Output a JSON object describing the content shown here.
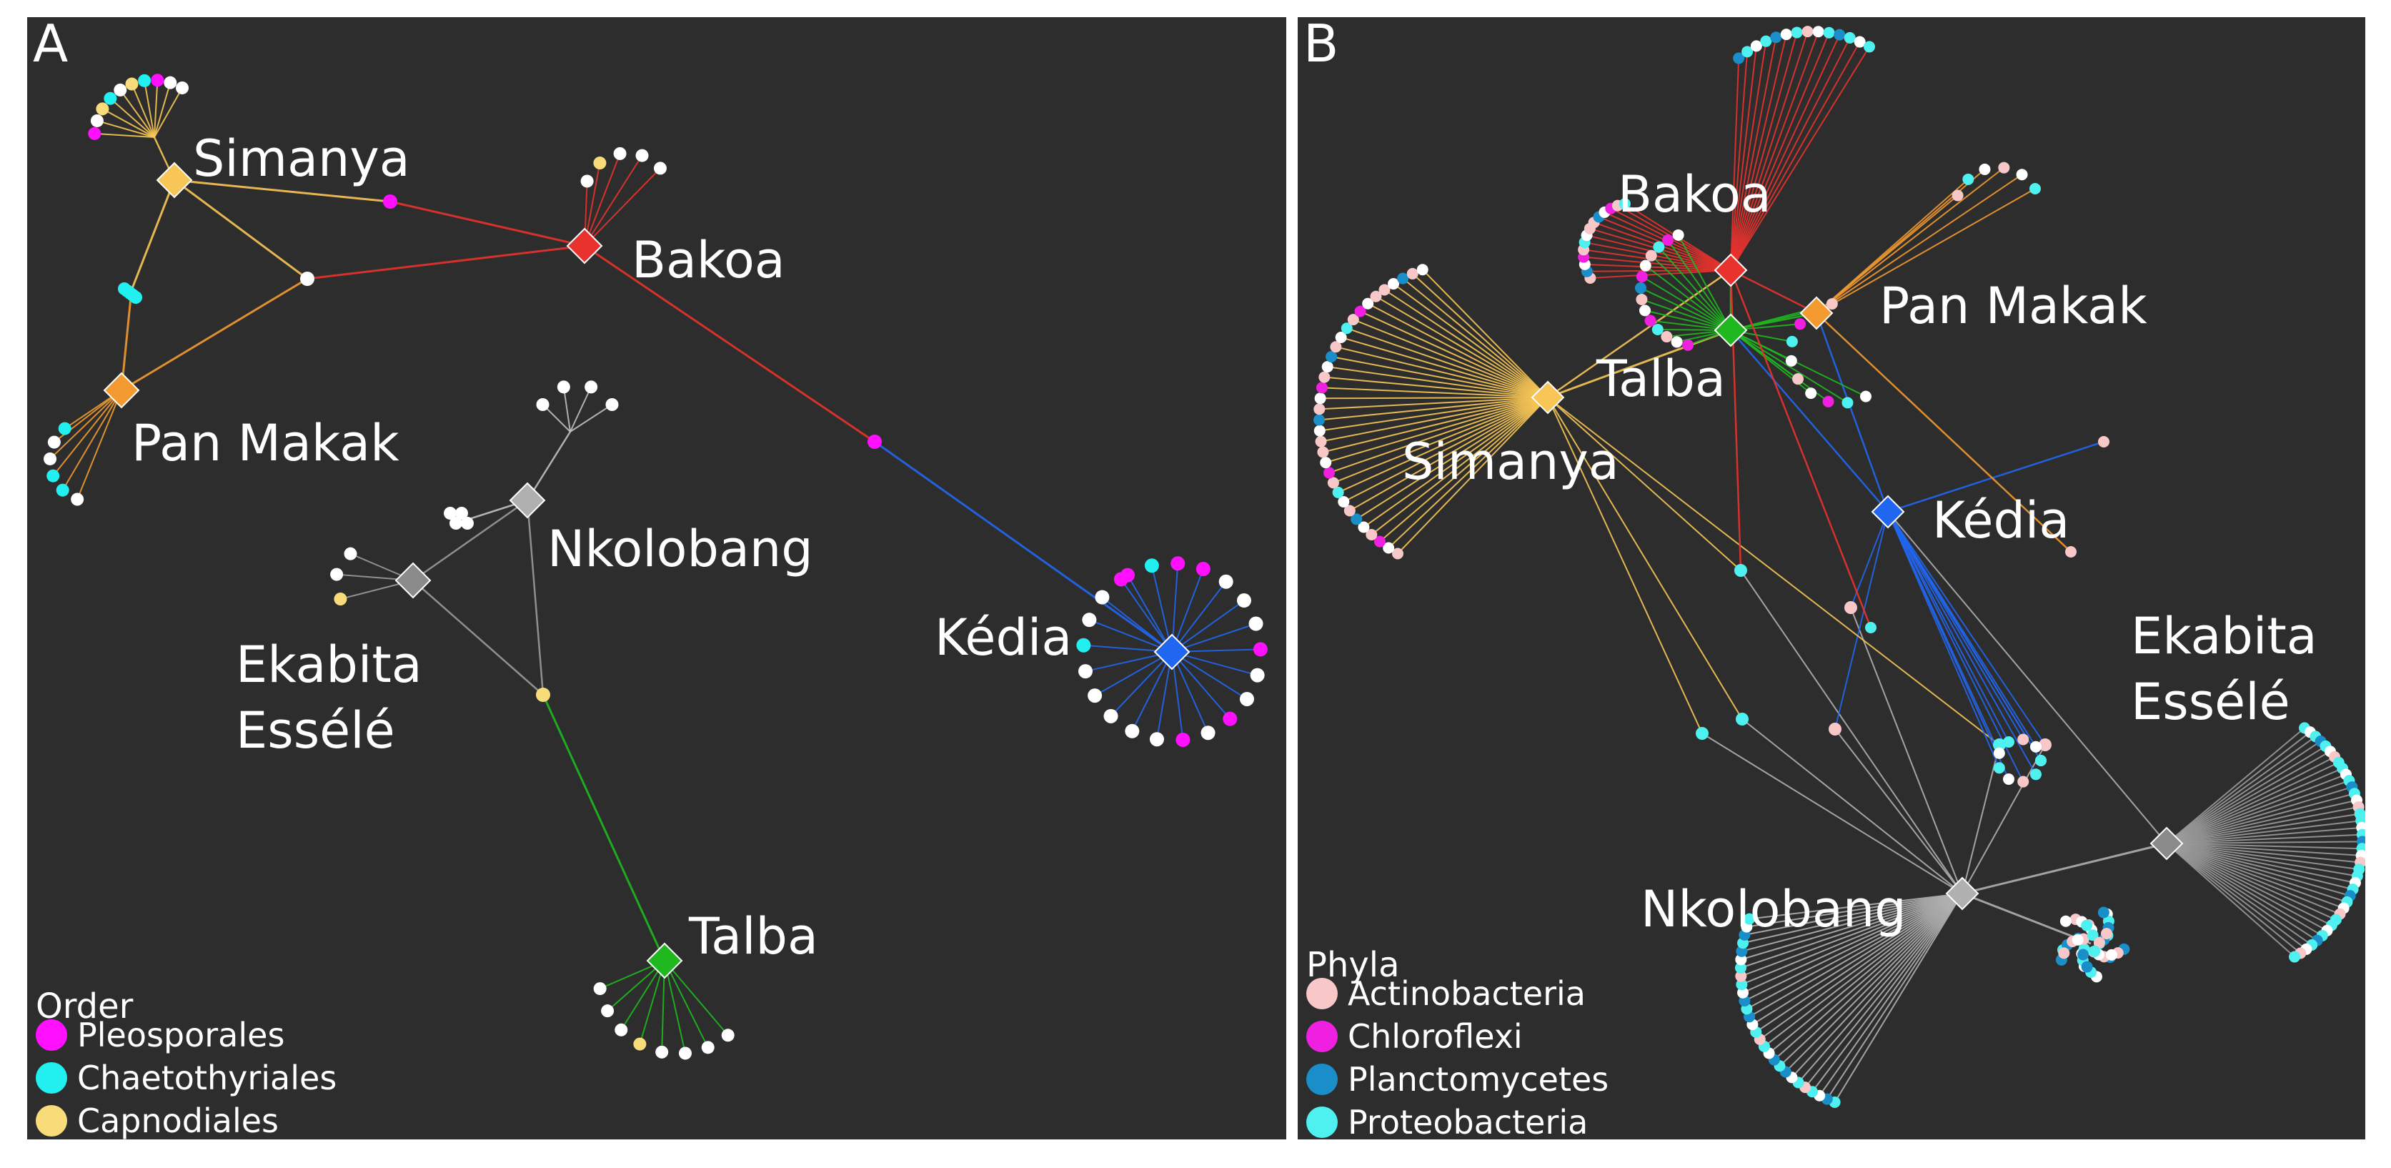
{
  "panel_a": {
    "letter": "A",
    "hubs": [
      {
        "id": "simanya",
        "label": "Simanya",
        "color": "#f7c657"
      },
      {
        "id": "bakoa",
        "label": "Bakoa",
        "color": "#e8322e"
      },
      {
        "id": "panmakak",
        "label": "Pan Makak",
        "color": "#f29a30"
      },
      {
        "id": "nkolobang",
        "label": "Nkolobang",
        "color": "#b0b0b0"
      },
      {
        "id": "ekabita",
        "label": "Ekabita Essélé",
        "label_lines": [
          "Ekabita",
          "Essélé"
        ],
        "color": "#8a8a8a"
      },
      {
        "id": "kedia",
        "label": "Kédia",
        "color": "#2166f0"
      },
      {
        "id": "talba",
        "label": "Talba",
        "color": "#1fb81f"
      }
    ],
    "legend": {
      "title": "Order",
      "items": [
        {
          "label": "Pleosporales",
          "color": "#ff10ff"
        },
        {
          "label": "Chaetothyriales",
          "color": "#22f0f0"
        },
        {
          "label": "Capnodiales",
          "color": "#f9dc7a"
        }
      ]
    }
  },
  "panel_b": {
    "letter": "B",
    "hubs": [
      {
        "id": "bakoa",
        "label": "Bakoa",
        "color": "#e8322e"
      },
      {
        "id": "panmakak",
        "label": "Pan Makak",
        "color": "#f29a30"
      },
      {
        "id": "talba",
        "label": "Talba",
        "color": "#1fb81f"
      },
      {
        "id": "simanya",
        "label": "Simanya",
        "color": "#f7c657"
      },
      {
        "id": "kedia",
        "label": "Kédia",
        "color": "#2166f0"
      },
      {
        "id": "ekabita",
        "label": "Ekabita Essélé",
        "label_lines": [
          "Ekabita",
          "Essélé"
        ],
        "color": "#8a8a8a"
      },
      {
        "id": "nkolobang",
        "label": "Nkolobang",
        "color": "#b0b0b0"
      }
    ],
    "legend": {
      "title": "Phyla",
      "items": [
        {
          "label": "Actinobacteria",
          "color": "#f8c7c7"
        },
        {
          "label": "Chloroflexi",
          "color": "#f020e0"
        },
        {
          "label": "Planctomycetes",
          "color": "#1a8ec8"
        },
        {
          "label": "Proteobacteria",
          "color": "#4ef0f0"
        }
      ]
    }
  },
  "colors": {
    "panel_bg": "#2d2d2d",
    "white_node": "#ffffff"
  }
}
